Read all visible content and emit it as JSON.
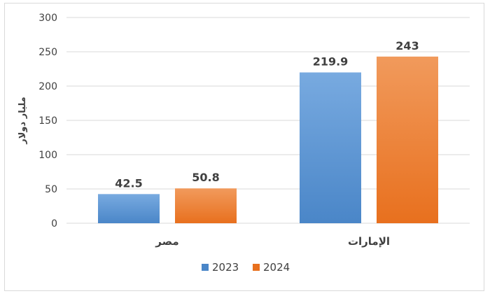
{
  "chart_data": {
    "type": "bar",
    "categories": [
      "مصر",
      "الإمارات"
    ],
    "series": [
      {
        "name": "2023",
        "values": [
          42.5,
          219.9
        ],
        "color_top": "#78aae0",
        "color_bottom": "#4a86c8"
      },
      {
        "name": "2024",
        "values": [
          50.8,
          243
        ],
        "color_top": "#f19a5c",
        "color_bottom": "#e8701e"
      }
    ],
    "data_labels": [
      [
        "42.5",
        "219.9"
      ],
      [
        "50.8",
        "243"
      ]
    ],
    "ylabel": "مليار دولار",
    "ylim": [
      0,
      300
    ],
    "yticks": [
      0,
      50,
      100,
      150,
      200,
      250,
      300
    ],
    "grid": true,
    "legend_position": "bottom"
  }
}
